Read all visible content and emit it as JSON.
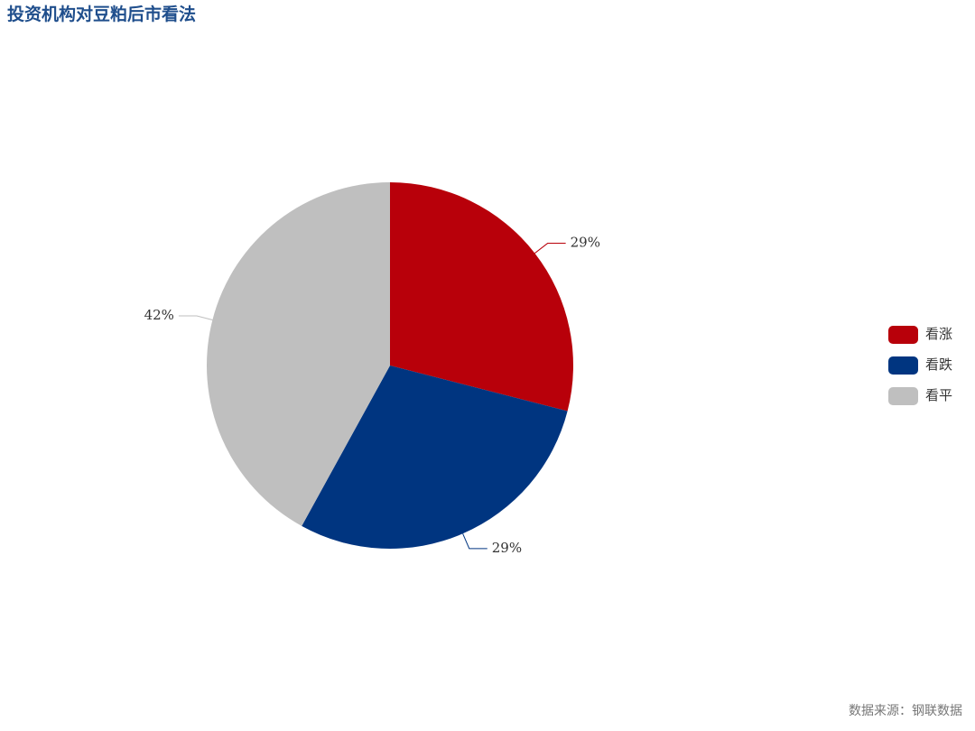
{
  "chart_data": {
    "type": "pie",
    "title": "投资机构对豆粕后市看法",
    "source": "数据来源：钢联数据",
    "categories": [
      "看涨",
      "看跌",
      "看平"
    ],
    "values": [
      29,
      29,
      42
    ],
    "value_labels": [
      "29%",
      "29%",
      "42%"
    ],
    "colors": [
      "#b8000a",
      "#003580",
      "#bfbfbf"
    ],
    "legend": "right"
  }
}
